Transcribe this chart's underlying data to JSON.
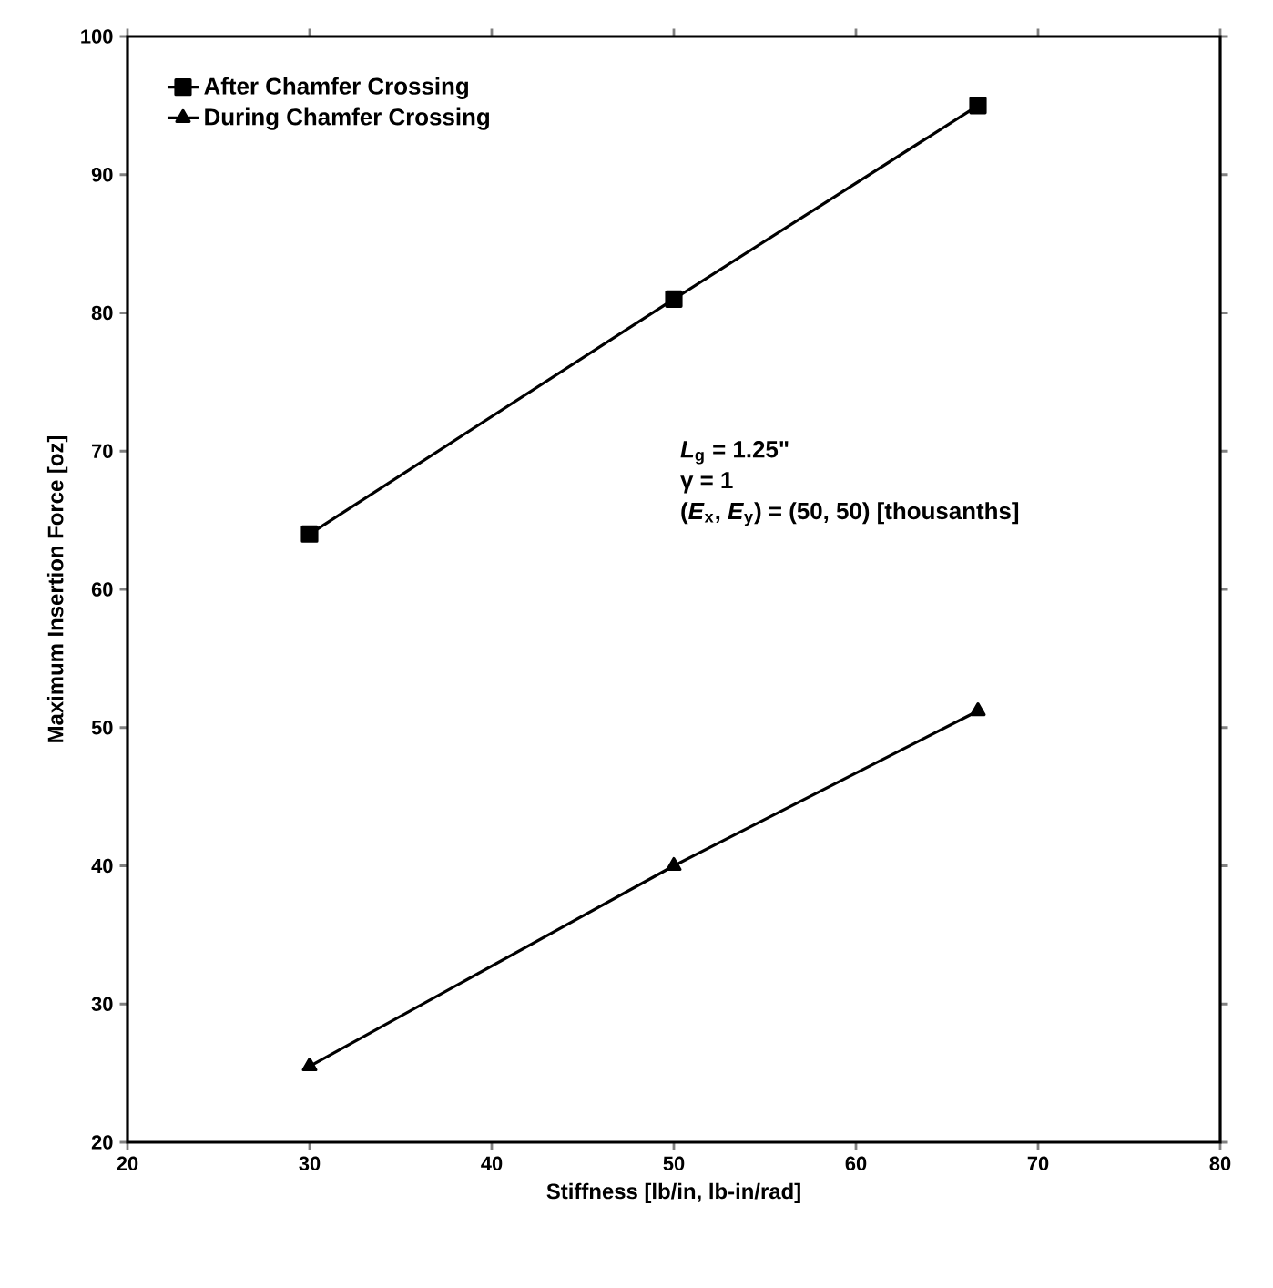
{
  "chart_data": {
    "type": "line",
    "xlabel": "Stiffness [lb/in, lb-in/rad]",
    "ylabel": "Maximum Insertion Force [oz]",
    "xlim": [
      20,
      80
    ],
    "xticks": [
      20,
      30,
      40,
      50,
      60,
      70,
      80
    ],
    "ylim": [
      20,
      100
    ],
    "yticks": [
      20,
      30,
      40,
      50,
      60,
      70,
      80,
      90,
      100
    ],
    "grid": false,
    "legend": "top left",
    "line_style": "solid",
    "annotations": [
      "*L*$_{g}$ = 1.25\"",
      "γ = 1",
      "(*E*$_{x}$, *E*$_{y}$) = (50, 50) [thousanths]"
    ],
    "series": [
      {
        "name": "After Chamfer Crossing",
        "color": "#000000",
        "marker": "square",
        "x": [
          30,
          50,
          66.7
        ],
        "values": [
          64,
          81,
          95
        ]
      },
      {
        "name": "During Chamfer Crossing",
        "color": "#000000",
        "marker": "triangle",
        "x": [
          30,
          50,
          66.7
        ],
        "values": [
          25.5,
          40,
          51.2
        ]
      }
    ]
  }
}
